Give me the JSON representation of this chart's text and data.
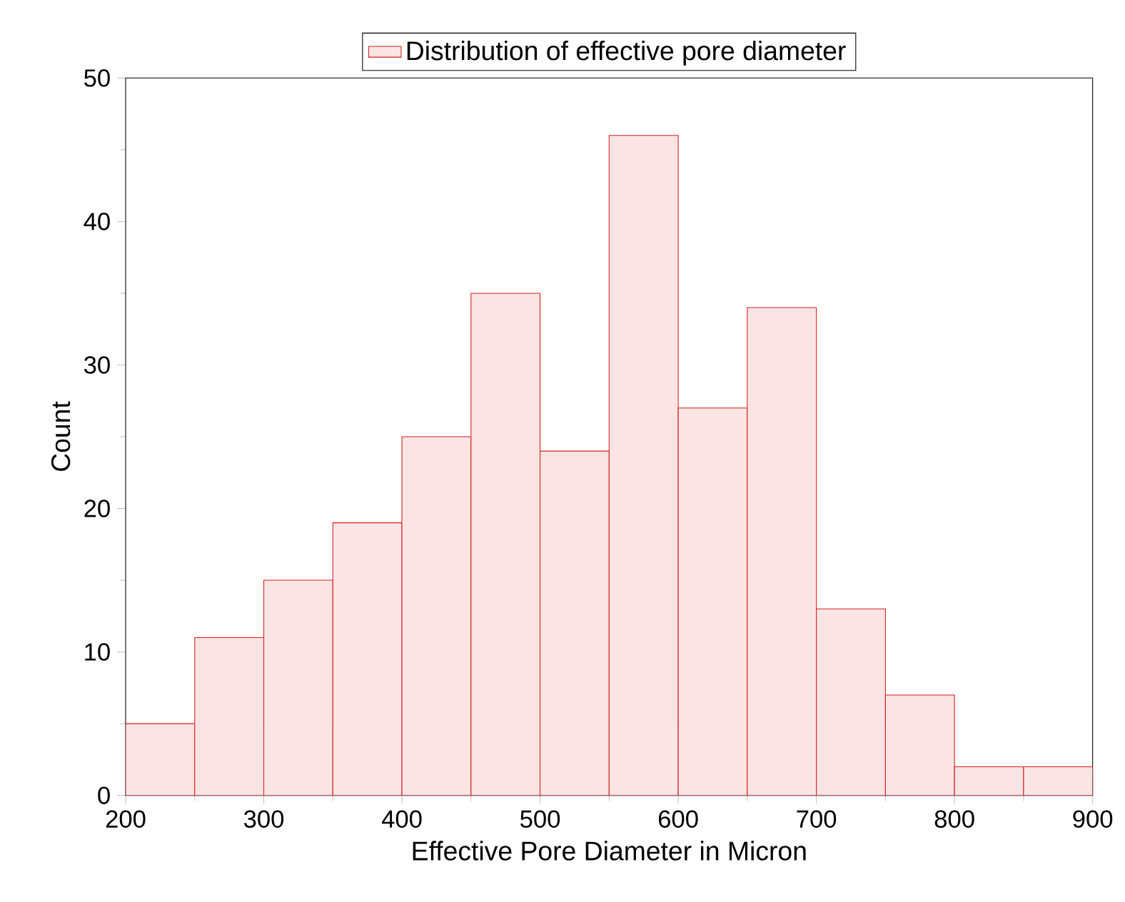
{
  "chart_data": {
    "type": "histogram",
    "xlabel": "Effective Pore Diameter in Micron",
    "ylabel": "Count",
    "bins": [
      200,
      250,
      300,
      350,
      400,
      450,
      500,
      550,
      600,
      650,
      700,
      750,
      800,
      850,
      900
    ],
    "series": [
      {
        "name": "Distribution of effective pore diameter",
        "color": "#d42020",
        "values": [
          5,
          11,
          15,
          19,
          25,
          35,
          24,
          46,
          27,
          34,
          13,
          7,
          2,
          2
        ]
      }
    ],
    "xlim": [
      200,
      900
    ],
    "ylim": [
      0,
      50
    ],
    "xticks": [
      200,
      300,
      400,
      500,
      600,
      700,
      800,
      900
    ],
    "yticks": [
      0,
      10,
      20,
      30,
      40,
      50
    ],
    "grid": false,
    "legend": "top"
  }
}
